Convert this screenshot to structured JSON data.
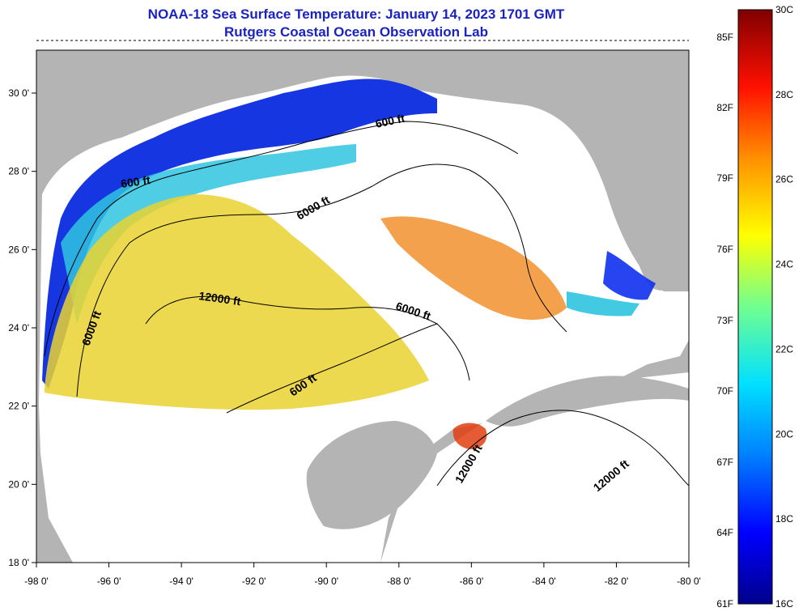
{
  "title": {
    "line1": "NOAA-18 Sea Surface Temperature:  January 14, 2023 1701 GMT",
    "line2": "Rutgers Coastal Ocean Observation Lab"
  },
  "map": {
    "lon_ticks": [
      "-98 0'",
      "-96 0'",
      "-94 0'",
      "-92 0'",
      "-90 0'",
      "-88 0'",
      "-86 0'",
      "-84 0'",
      "-82 0'",
      "-80 0'"
    ],
    "lat_ticks": [
      "30 0'",
      "28 0'",
      "26 0'",
      "24 0'",
      "22 0'",
      "20 0'",
      "18 0'"
    ],
    "contour_labels": [
      "600 ft",
      "600 ft",
      "6000 ft",
      "12000 ft",
      "6000 ft",
      "6000 ft",
      "600 ft",
      "12000 ft",
      "12000 ft"
    ],
    "land_color": "#b4b4b4",
    "nodata_color": "#ffffff"
  },
  "colorbar": {
    "fahrenheit_labels": [
      "85F",
      "82F",
      "79F",
      "76F",
      "73F",
      "70F",
      "67F",
      "64F",
      "61F"
    ],
    "celsius_labels": [
      "30C",
      "28C",
      "26C",
      "24C",
      "22C",
      "20C",
      "18C",
      "16C"
    ]
  }
}
